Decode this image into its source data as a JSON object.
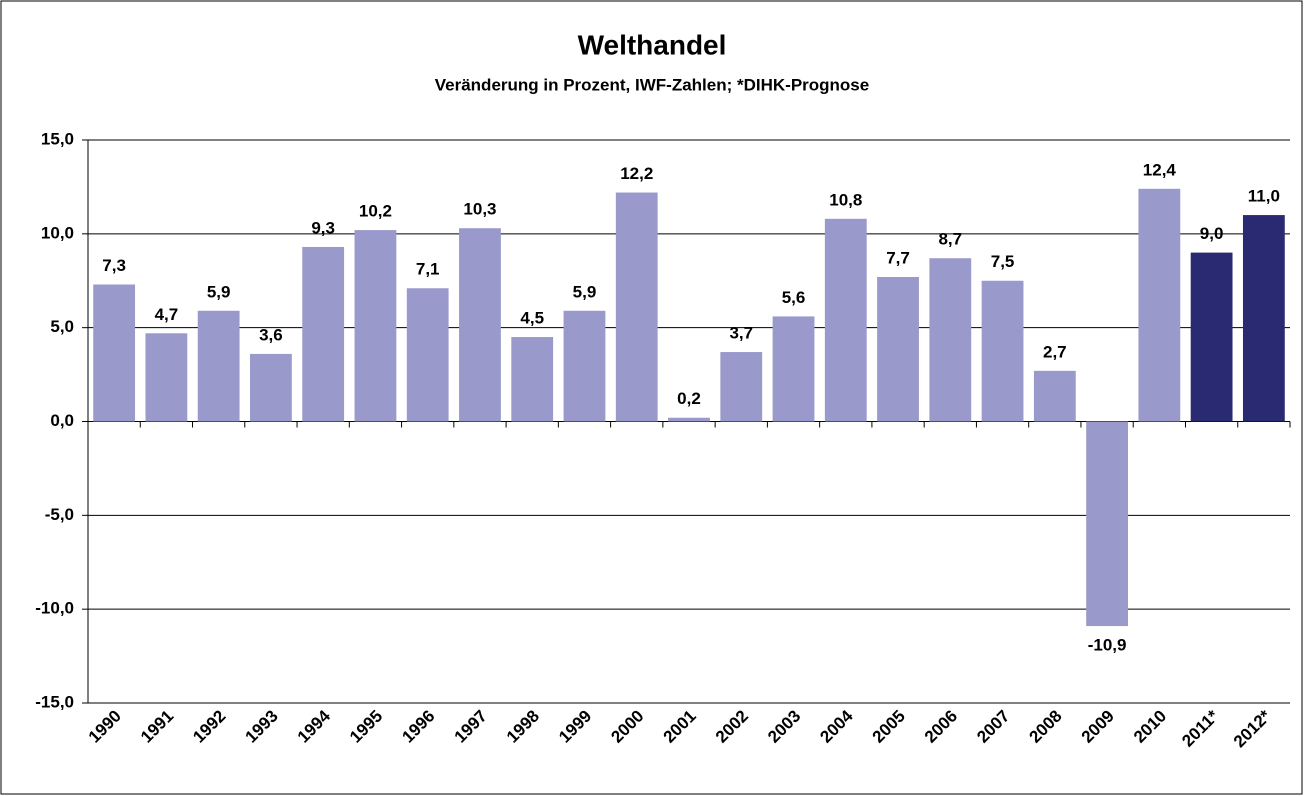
{
  "chart_data": {
    "type": "bar",
    "title": "Welthandel",
    "subtitle": "Veränderung in Prozent, IWF-Zahlen; *DIHK-Prognose",
    "categories": [
      "1990",
      "1991",
      "1992",
      "1993",
      "1994",
      "1995",
      "1996",
      "1997",
      "1998",
      "1999",
      "2000",
      "2001",
      "2002",
      "2003",
      "2004",
      "2005",
      "2006",
      "2007",
      "2008",
      "2009",
      "2010",
      "2011*",
      "2012*"
    ],
    "values": [
      7.3,
      4.7,
      5.9,
      3.6,
      9.3,
      10.2,
      7.1,
      10.3,
      4.5,
      5.9,
      12.2,
      0.2,
      3.7,
      5.6,
      10.8,
      7.7,
      8.7,
      7.5,
      2.7,
      -10.9,
      12.4,
      9.0,
      11.0
    ],
    "value_labels": [
      "7,3",
      "4,7",
      "5,9",
      "3,6",
      "9,3",
      "10,2",
      "7,1",
      "10,3",
      "4,5",
      "5,9",
      "12,2",
      "0,2",
      "3,7",
      "5,6",
      "10,8",
      "7,7",
      "8,7",
      "7,5",
      "2,7",
      "-10,9",
      "12,4",
      "9,0",
      "11,0"
    ],
    "colors": [
      "#9999cc",
      "#9999cc",
      "#9999cc",
      "#9999cc",
      "#9999cc",
      "#9999cc",
      "#9999cc",
      "#9999cc",
      "#9999cc",
      "#9999cc",
      "#9999cc",
      "#9999cc",
      "#9999cc",
      "#9999cc",
      "#9999cc",
      "#9999cc",
      "#9999cc",
      "#9999cc",
      "#9999cc",
      "#9999cc",
      "#9999cc",
      "#2a2a72",
      "#2a2a72"
    ],
    "ylim": [
      -15,
      15
    ],
    "yticks": [
      {
        "value": -15,
        "label": "-15,0"
      },
      {
        "value": -10,
        "label": "-10,0"
      },
      {
        "value": -5,
        "label": "-5,0"
      },
      {
        "value": 0,
        "label": "0,0"
      },
      {
        "value": 5,
        "label": "5,0"
      },
      {
        "value": 10,
        "label": "10,0"
      },
      {
        "value": 15,
        "label": "15,0"
      }
    ],
    "grid": true
  }
}
